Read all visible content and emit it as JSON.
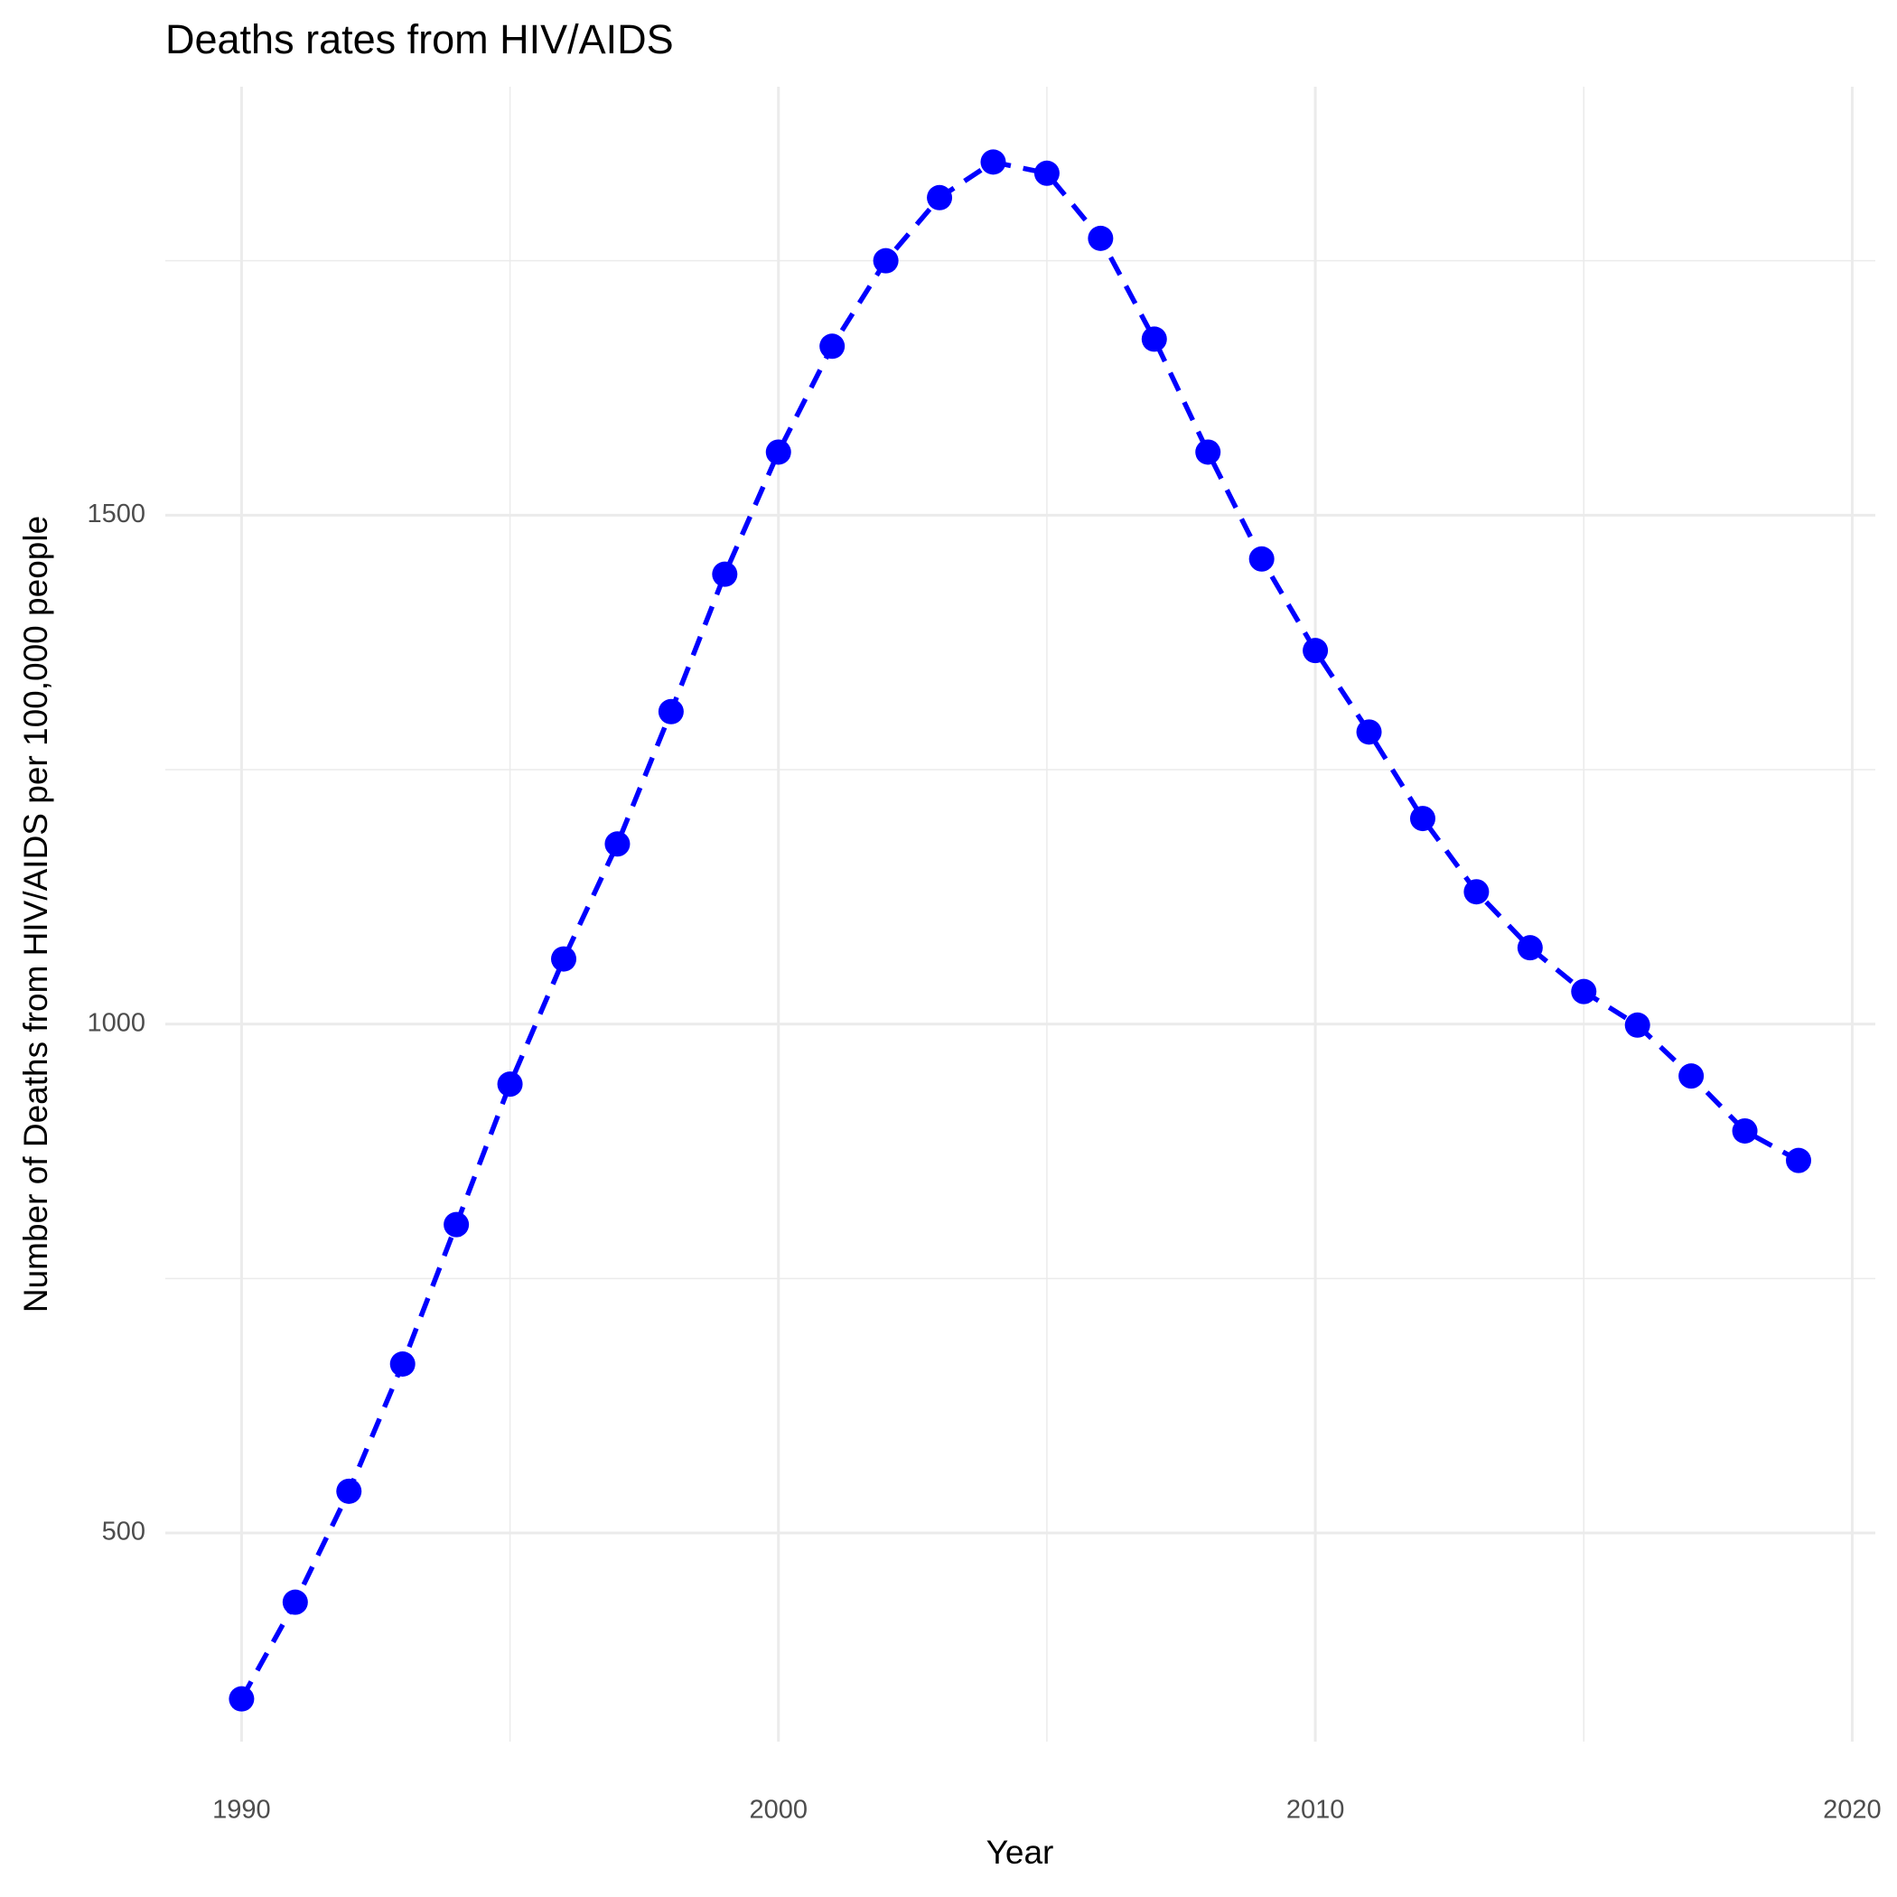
{
  "chart_data": {
    "type": "line",
    "title": "Deaths rates from HIV/AIDS",
    "x_label": "Year",
    "y_label": "Number of Deaths from HIV/AIDS per 100,000 people",
    "x": [
      1990,
      1991,
      1992,
      1993,
      1994,
      1995,
      1996,
      1997,
      1998,
      1999,
      2000,
      2001,
      2002,
      2003,
      2004,
      2005,
      2006,
      2007,
      2008,
      2009,
      2010,
      2011,
      2012,
      2013,
      2014,
      2015,
      2016,
      2017,
      2018,
      2019
    ],
    "series": [
      {
        "color": "#0000ff",
        "values": [
          337,
          432,
          541,
          666,
          803,
          941,
          1064,
          1177,
          1307,
          1442,
          1562,
          1666,
          1750,
          1812,
          1847,
          1836,
          1772,
          1673,
          1562,
          1457,
          1367,
          1287,
          1202,
          1130,
          1075,
          1032,
          999,
          949,
          895,
          866
        ]
      }
    ],
    "xlim": [
      1988.58,
      2020.43
    ],
    "xticks": [
      1990,
      2000,
      2010,
      2020
    ],
    "ylim": [
      295,
      1921
    ],
    "yticks": [
      500,
      1000,
      1500
    ],
    "grid": true
  }
}
